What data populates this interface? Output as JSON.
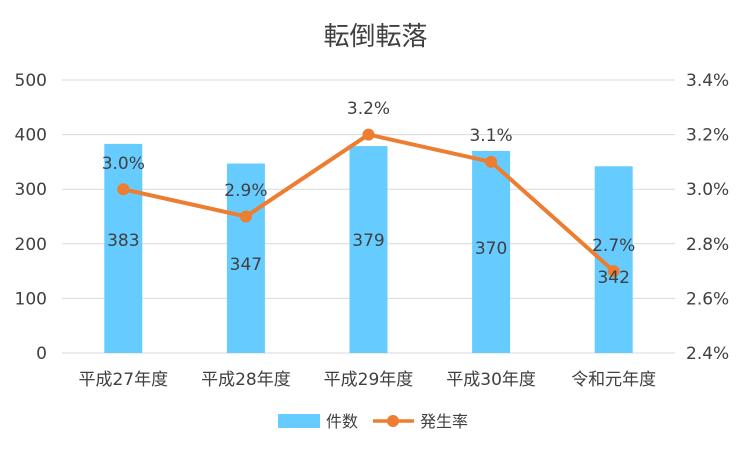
{
  "chart_data": {
    "type": "bar",
    "title": "転倒転落",
    "categories": [
      "平成27年度",
      "平成28年度",
      "平成29年度",
      "平成30年度",
      "令和元年度"
    ],
    "series": [
      {
        "name": "件数",
        "type": "bar",
        "axis": "left",
        "values": [
          383,
          347,
          379,
          370,
          342
        ],
        "labels": [
          "383",
          "347",
          "379",
          "370",
          "342"
        ],
        "color": "#66CCFF"
      },
      {
        "name": "発生率",
        "type": "line",
        "axis": "right",
        "values": [
          3.0,
          2.9,
          3.2,
          3.1,
          2.7
        ],
        "labels": [
          "3.0%",
          "2.9%",
          "3.2%",
          "3.1%",
          "2.7%"
        ],
        "color": "#ED7D31"
      }
    ],
    "y_left": {
      "ylim": [
        0,
        500
      ],
      "ticks": [
        0,
        100,
        200,
        300,
        400,
        500
      ],
      "tick_labels": [
        "0",
        "100",
        "200",
        "300",
        "400",
        "500"
      ]
    },
    "y_right": {
      "ylim": [
        2.4,
        3.4
      ],
      "ticks": [
        2.4,
        2.6,
        2.8,
        3.0,
        3.2,
        3.4
      ],
      "tick_labels": [
        "2.4%",
        "2.6%",
        "2.8%",
        "3.0%",
        "3.2%",
        "3.4%"
      ]
    },
    "grid": true,
    "legend": "bottom",
    "colors": {
      "grid": "#D9D9D9",
      "text": "#404040"
    }
  }
}
